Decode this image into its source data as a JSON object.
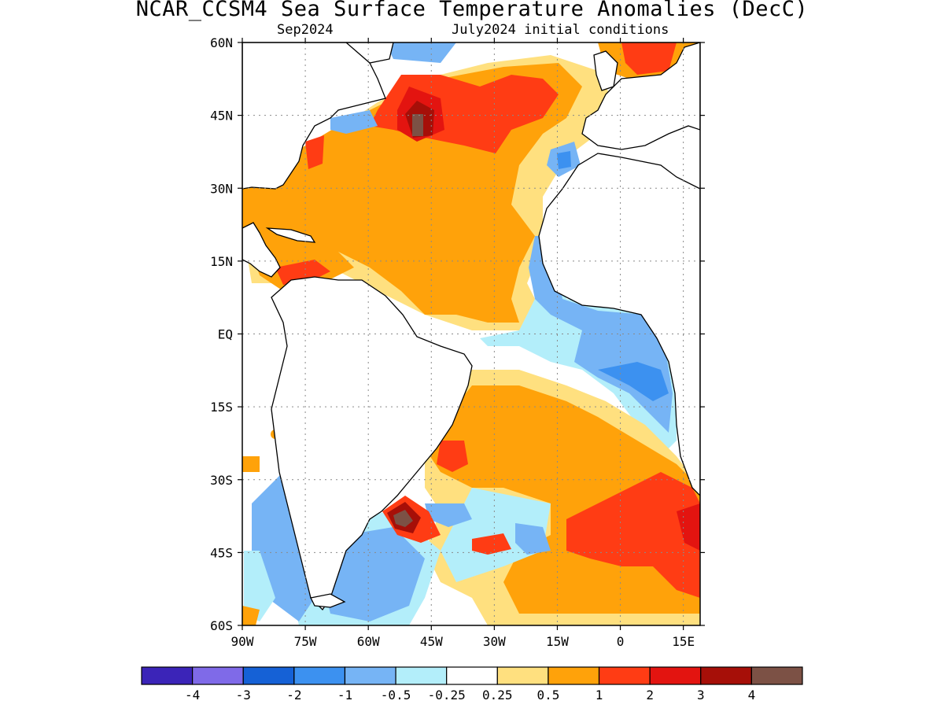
{
  "title": "NCAR_CCSM4 Sea Surface Temperature Anomalies (DecC)",
  "subtitle_left": "Sep2024",
  "subtitle_right": "July2024 initial conditions",
  "map": {
    "lon_range": [
      -90,
      19
    ],
    "lat_range": [
      -60,
      60
    ],
    "lat_ticks": [
      {
        "value": 60,
        "label": "60N"
      },
      {
        "value": 45,
        "label": "45N"
      },
      {
        "value": 30,
        "label": "30N"
      },
      {
        "value": 15,
        "label": "15N"
      },
      {
        "value": 0,
        "label": "EQ"
      },
      {
        "value": -15,
        "label": "15S"
      },
      {
        "value": -30,
        "label": "30S"
      },
      {
        "value": -45,
        "label": "45S"
      },
      {
        "value": -60,
        "label": "60S"
      }
    ],
    "lon_ticks": [
      {
        "value": -90,
        "label": "90W"
      },
      {
        "value": -75,
        "label": "75W"
      },
      {
        "value": -60,
        "label": "60W"
      },
      {
        "value": -45,
        "label": "45W"
      },
      {
        "value": -30,
        "label": "30W"
      },
      {
        "value": -15,
        "label": "15W"
      },
      {
        "value": 0,
        "label": "0"
      },
      {
        "value": 15,
        "label": "15E"
      }
    ],
    "grid": true
  },
  "colorbar": {
    "colors": [
      "#3b24b8",
      "#7f6ae8",
      "#1561d6",
      "#3c91f0",
      "#76b4f5",
      "#b3eefa",
      "#ffffff",
      "#ffe07f",
      "#ffa20a",
      "#ff3c14",
      "#e31410",
      "#a60f08",
      "#7c5145"
    ],
    "labels": [
      "-4",
      "-3",
      "-2",
      "-1",
      "-0.5",
      "-0.25",
      "0.25",
      "0.5",
      "1",
      "2",
      "3",
      "4"
    ]
  },
  "colors": {
    "coast": "#000000",
    "land": "#ffffff"
  }
}
